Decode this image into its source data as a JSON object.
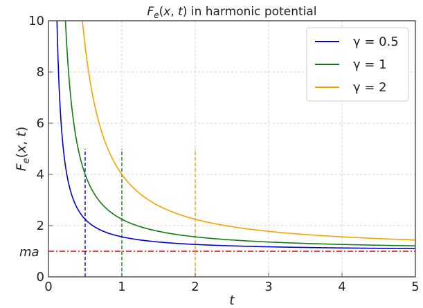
{
  "chart_data": {
    "type": "line",
    "title": "F_e(x, t) in harmonic potential",
    "xlabel": "t",
    "ylabel": "F_e(x, t)",
    "xlim": [
      0,
      5
    ],
    "ylim": [
      0,
      10
    ],
    "x_ticks": [
      "0",
      "1",
      "2",
      "3",
      "4",
      "5"
    ],
    "y_ticks": [
      "0",
      "2",
      "4",
      "6",
      "8",
      "10"
    ],
    "grid": true,
    "legend_position": "top-right",
    "ma_value": 1,
    "ma_label": "ma",
    "series": [
      {
        "name": "γ = 0.5",
        "gamma": 0.5,
        "color": "#0000cc"
      },
      {
        "name": "γ = 1",
        "gamma": 1,
        "color": "#117a11"
      },
      {
        "name": "γ = 2",
        "gamma": 2,
        "color": "#f5a300"
      }
    ],
    "reference_lines": [
      {
        "type": "horizontal",
        "y": 1,
        "color": "#e00000",
        "style": "dash-dot"
      },
      {
        "type": "vertical",
        "x": 0.5,
        "y_range": [
          0,
          5
        ],
        "color": "#0000cc",
        "style": "dashed"
      },
      {
        "type": "vertical",
        "x": 1,
        "y_range": [
          0,
          5
        ],
        "color": "#117a11",
        "style": "dashed"
      },
      {
        "type": "vertical",
        "x": 2,
        "y_range": [
          0,
          5
        ],
        "color": "#f5a300",
        "style": "dashed"
      }
    ]
  }
}
